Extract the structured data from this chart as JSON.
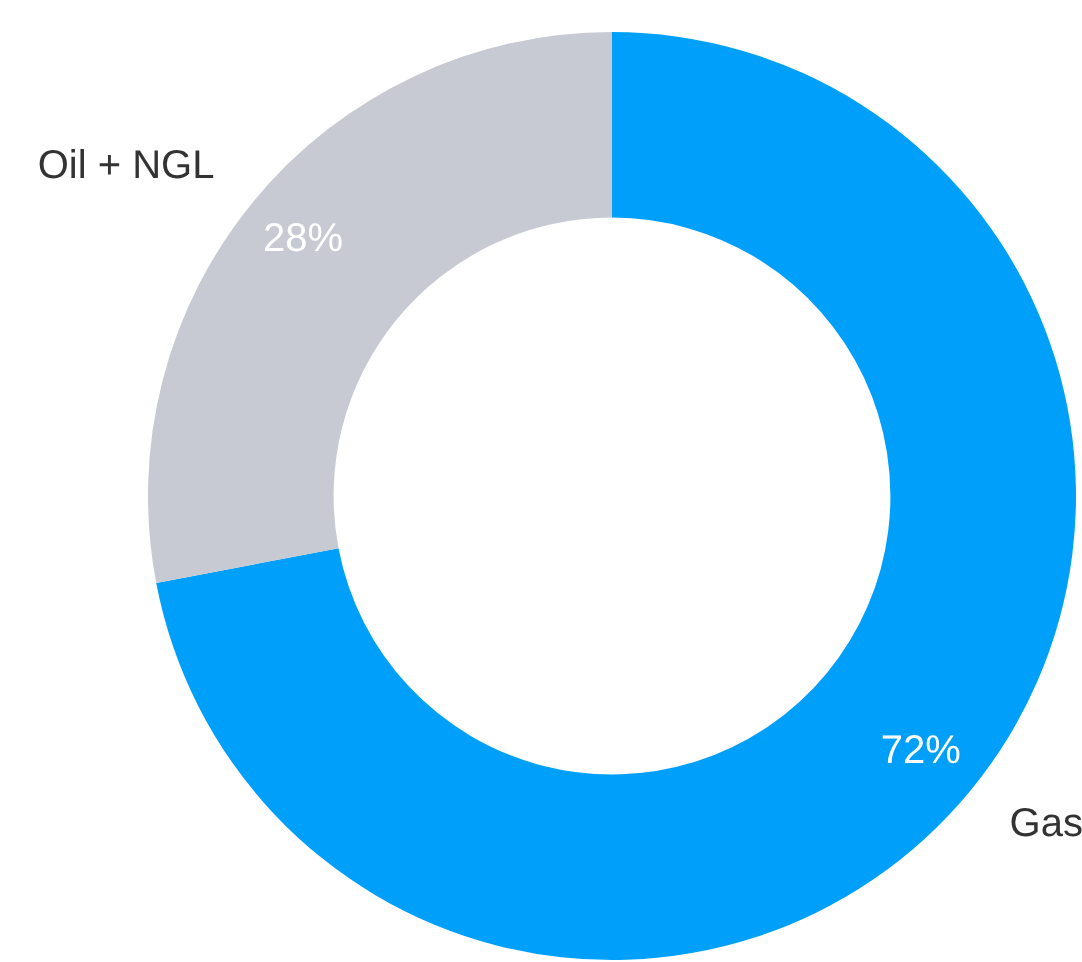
{
  "chart_data": {
    "type": "donut",
    "categories": [
      "Gas",
      "Oil + NGL"
    ],
    "values": [
      72,
      28
    ],
    "colors": [
      "#00a0fa",
      "#c8cad3"
    ],
    "value_labels": [
      "72%",
      "28%"
    ],
    "legend": false
  }
}
